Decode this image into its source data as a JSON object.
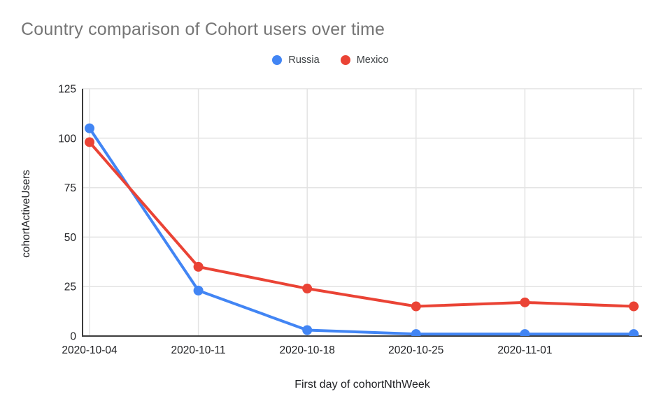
{
  "title": "Country comparison of Cohort users over time",
  "legend": {
    "items": [
      {
        "label": "Russia",
        "color": "#4285f4"
      },
      {
        "label": "Mexico",
        "color": "#ea4335"
      }
    ]
  },
  "chart_data": {
    "type": "line",
    "title": "Country comparison of Cohort users over time",
    "xlabel": "First day of cohortNthWeek",
    "ylabel": "cohortActiveUsers",
    "categories": [
      "2020-10-04",
      "2020-10-11",
      "2020-10-18",
      "2020-10-25",
      "2020-11-01",
      ""
    ],
    "series": [
      {
        "name": "Russia",
        "color": "#4285f4",
        "values": [
          105,
          23,
          3,
          1,
          1,
          1
        ]
      },
      {
        "name": "Mexico",
        "color": "#ea4335",
        "values": [
          98,
          35,
          24,
          15,
          17,
          15
        ]
      }
    ],
    "ylim": [
      0,
      125
    ],
    "yticks": [
      0,
      25,
      50,
      75,
      100,
      125
    ],
    "grid": true,
    "legend_position": "top",
    "colors": {
      "gridline": "#e3e3e3",
      "axis": "#3c3c3c",
      "title_text": "#757575",
      "tick_text": "#202124",
      "background": "#ffffff"
    }
  }
}
